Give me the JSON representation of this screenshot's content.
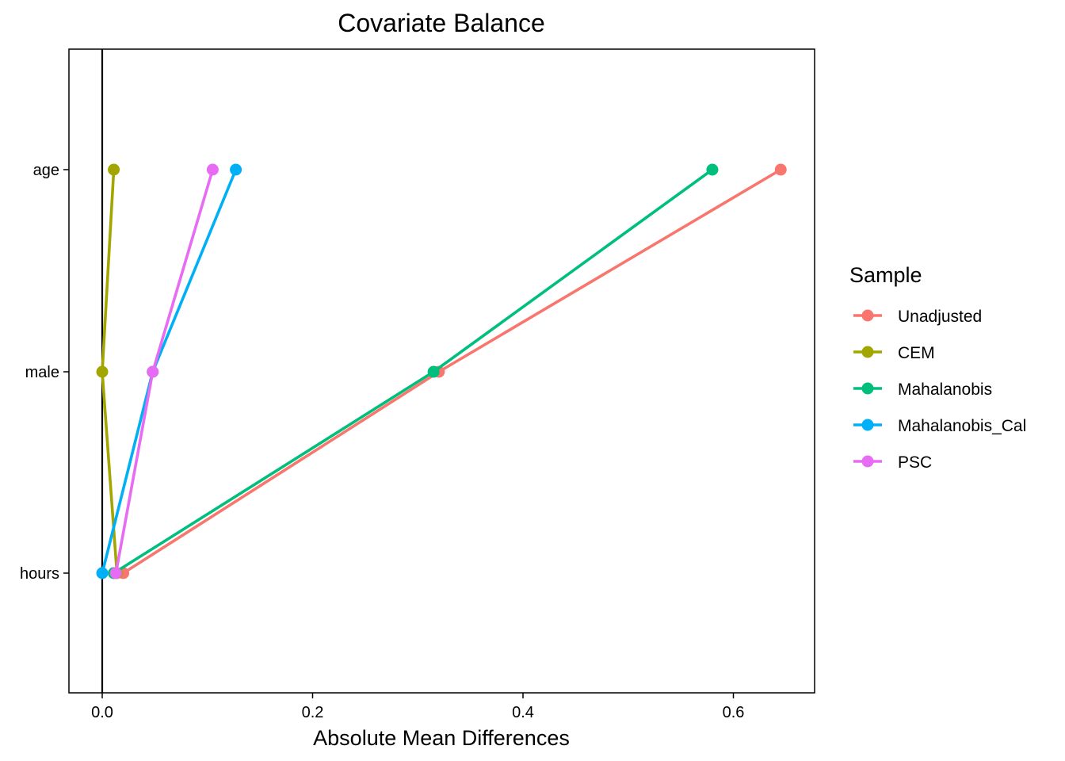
{
  "chart_data": {
    "type": "line",
    "title": "Covariate Balance",
    "xlabel": "Absolute Mean Differences",
    "ylabel": "",
    "xlim": [
      -0.03,
      0.675
    ],
    "x_ticks": [
      "0.0",
      "0.2",
      "0.4",
      "0.6"
    ],
    "categories": [
      "hours",
      "male",
      "age"
    ],
    "reference_line_x": 0,
    "grid": false,
    "legend_title": "Sample",
    "legend_position": "right",
    "series": [
      {
        "name": "Unadjusted",
        "color": "#F8766D",
        "values": [
          0.02,
          0.32,
          0.645
        ]
      },
      {
        "name": "CEM",
        "color": "#A3A500",
        "values": [
          0.014,
          0.0,
          0.011
        ]
      },
      {
        "name": "Mahalanobis",
        "color": "#00BF7D",
        "values": [
          0.011,
          0.315,
          0.58
        ]
      },
      {
        "name": "Mahalanobis_Cal",
        "color": "#00B0F6",
        "values": [
          0.0,
          0.048,
          0.127
        ]
      },
      {
        "name": "PSC",
        "color": "#E76BF3",
        "values": [
          0.013,
          0.048,
          0.105
        ]
      }
    ]
  }
}
